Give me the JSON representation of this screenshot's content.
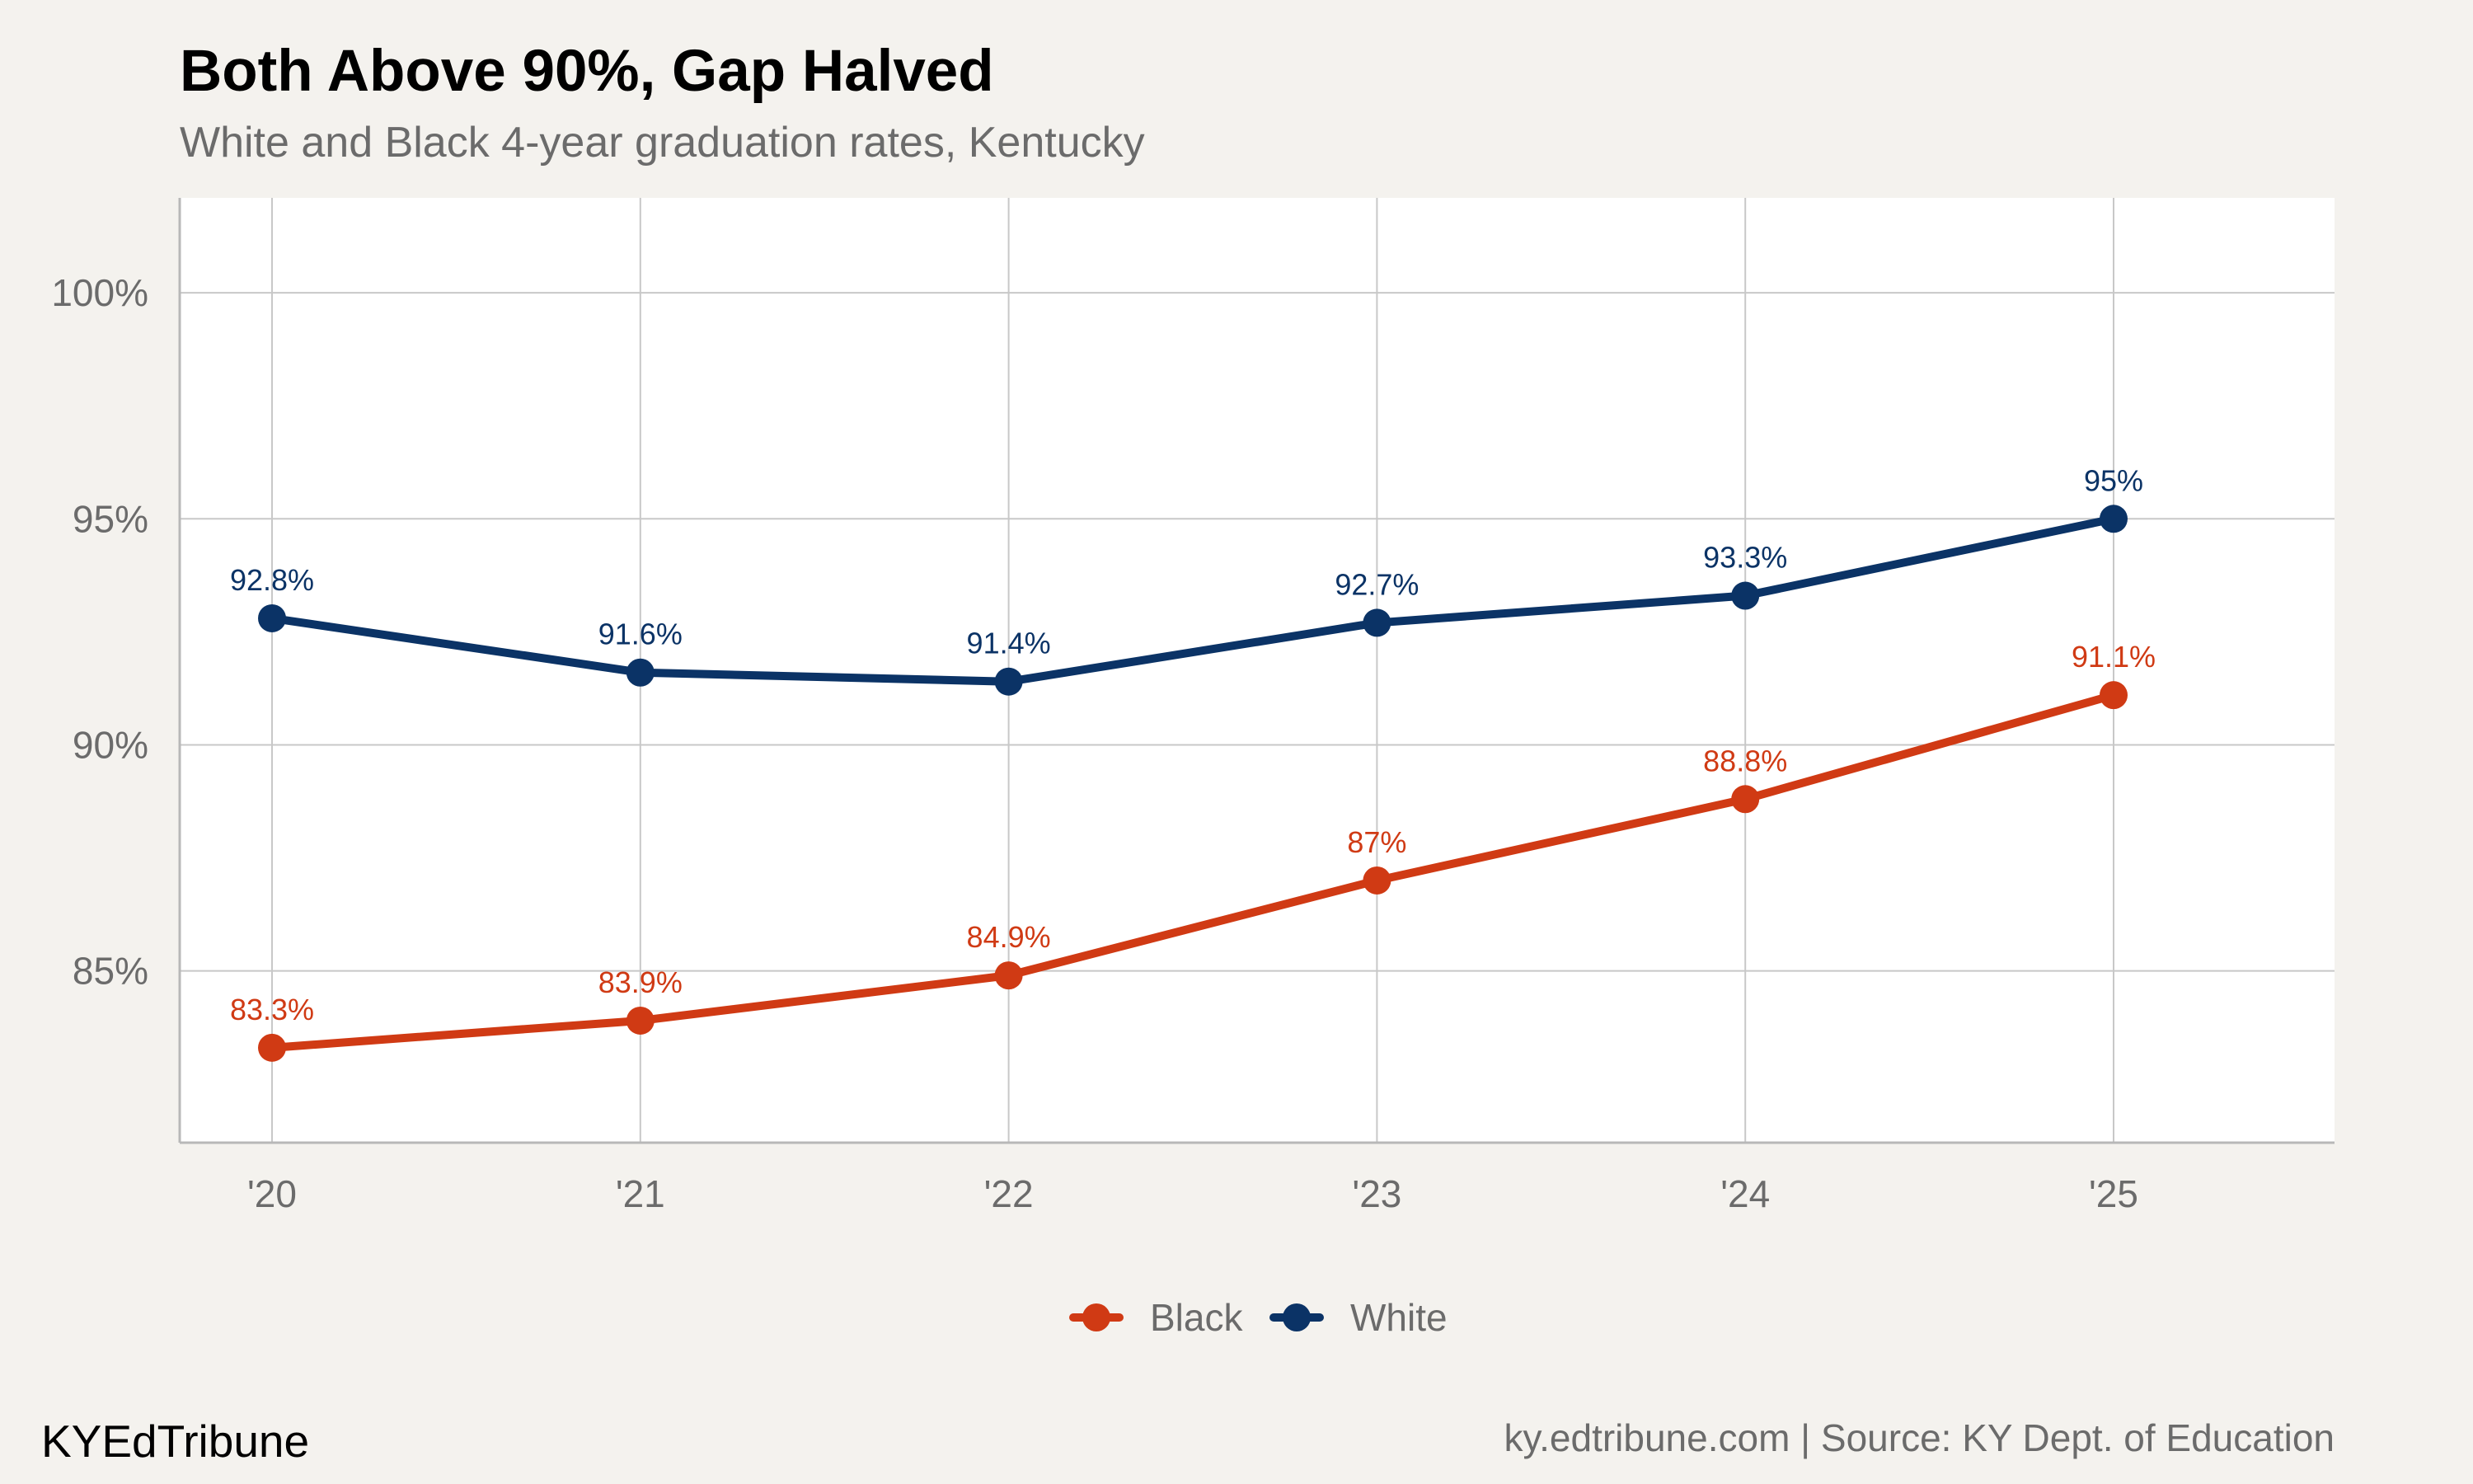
{
  "header": {
    "title": "Both Above 90%, Gap Halved",
    "subtitle": "White and Black 4-year graduation rates, Kentucky"
  },
  "footer": {
    "brand": "KYEdTribune",
    "source": "ky.edtribune.com | Source: KY Dept. of Education"
  },
  "colors": {
    "background": "#f4f2ee",
    "panel": "#ffffff",
    "grid": "#c8c8c8",
    "black_series": "#d03a14",
    "white_series": "#0b3366"
  },
  "chart_data": {
    "type": "line",
    "title": "Both Above 90%, Gap Halved",
    "subtitle": "White and Black 4-year graduation rates, Kentucky",
    "xlabel": "",
    "ylabel": "",
    "categories": [
      "'20",
      "'21",
      "'22",
      "'23",
      "'24",
      "'25"
    ],
    "ylim": [
      81.2,
      102.1
    ],
    "yticks": [
      85,
      90,
      95,
      100
    ],
    "ytick_labels": [
      "85%",
      "90%",
      "95%",
      "100%"
    ],
    "grid": true,
    "legend_position": "bottom",
    "series": [
      {
        "name": "Black",
        "color": "#d03a14",
        "values": [
          83.3,
          83.9,
          84.9,
          87,
          88.8,
          91.1
        ],
        "labels": [
          "83.3%",
          "83.9%",
          "84.9%",
          "87%",
          "88.8%",
          "91.1%"
        ]
      },
      {
        "name": "White",
        "color": "#0b3366",
        "values": [
          92.8,
          91.6,
          91.4,
          92.7,
          93.3,
          95
        ],
        "labels": [
          "92.8%",
          "91.6%",
          "91.4%",
          "92.7%",
          "93.3%",
          "95%"
        ]
      }
    ]
  }
}
